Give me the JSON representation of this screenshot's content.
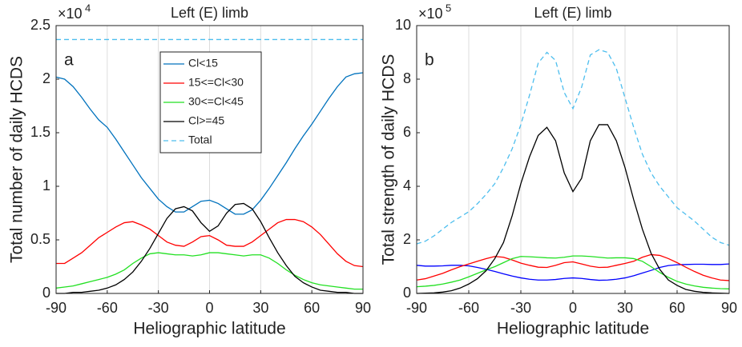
{
  "chart_data": [
    {
      "type": "line",
      "title": "Left (E) limb",
      "annotation": "a",
      "x_label": "Heliographic latitude",
      "y_label": "Total number of daily HCDS",
      "y_multiplier": "×10",
      "y_multiplier_exp": "4",
      "xlim": [
        -90,
        90
      ],
      "xticks": [
        -90,
        -60,
        -30,
        0,
        30,
        60,
        90
      ],
      "ylim": [
        0,
        2.5
      ],
      "yticks": [
        0,
        0.5,
        1,
        1.5,
        2,
        2.5
      ],
      "grid": true,
      "legend": "top-center",
      "x": [
        -90,
        -85,
        -80,
        -75,
        -70,
        -65,
        -60,
        -55,
        -50,
        -45,
        -40,
        -35,
        -30,
        -25,
        -20,
        -15,
        -10,
        -5,
        0,
        5,
        10,
        15,
        20,
        25,
        30,
        35,
        40,
        45,
        50,
        55,
        60,
        65,
        70,
        75,
        80,
        85,
        90
      ],
      "series": [
        {
          "name": "Cl<15",
          "color": "#0072bd",
          "linestyle": "solid",
          "values": [
            2.02,
            2.0,
            1.93,
            1.83,
            1.72,
            1.62,
            1.55,
            1.44,
            1.32,
            1.2,
            1.08,
            0.98,
            0.88,
            0.81,
            0.76,
            0.76,
            0.81,
            0.86,
            0.87,
            0.84,
            0.79,
            0.74,
            0.74,
            0.78,
            0.87,
            0.98,
            1.1,
            1.22,
            1.35,
            1.47,
            1.58,
            1.7,
            1.82,
            1.93,
            2.02,
            2.05,
            2.06
          ]
        },
        {
          "name": "15<=Cl<30",
          "color": "#ff0000",
          "linestyle": "solid",
          "values": [
            0.28,
            0.28,
            0.33,
            0.38,
            0.45,
            0.52,
            0.57,
            0.62,
            0.66,
            0.67,
            0.64,
            0.6,
            0.54,
            0.48,
            0.45,
            0.44,
            0.48,
            0.53,
            0.54,
            0.5,
            0.45,
            0.44,
            0.44,
            0.48,
            0.54,
            0.6,
            0.66,
            0.69,
            0.69,
            0.67,
            0.62,
            0.55,
            0.46,
            0.37,
            0.3,
            0.26,
            0.25
          ]
        },
        {
          "name": "30<=Cl<45",
          "color": "#22e022",
          "linestyle": "solid",
          "values": [
            0.05,
            0.06,
            0.07,
            0.09,
            0.11,
            0.13,
            0.15,
            0.18,
            0.22,
            0.28,
            0.33,
            0.37,
            0.38,
            0.37,
            0.36,
            0.36,
            0.35,
            0.36,
            0.38,
            0.38,
            0.37,
            0.36,
            0.35,
            0.36,
            0.36,
            0.33,
            0.28,
            0.22,
            0.17,
            0.13,
            0.1,
            0.08,
            0.07,
            0.06,
            0.05,
            0.04,
            0.04
          ]
        },
        {
          "name": "Cl>=45",
          "color": "#000000",
          "linestyle": "solid",
          "values": [
            0,
            0,
            0.01,
            0.01,
            0.02,
            0.03,
            0.05,
            0.08,
            0.13,
            0.2,
            0.3,
            0.42,
            0.56,
            0.7,
            0.79,
            0.81,
            0.77,
            0.66,
            0.58,
            0.63,
            0.75,
            0.83,
            0.84,
            0.79,
            0.67,
            0.52,
            0.38,
            0.26,
            0.16,
            0.1,
            0.06,
            0.03,
            0.02,
            0.01,
            0.01,
            0,
            0
          ]
        },
        {
          "name": "Total",
          "color": "#4dbeee",
          "linestyle": "dashed",
          "values": [
            2.37,
            2.37,
            2.37,
            2.37,
            2.37,
            2.37,
            2.37,
            2.37,
            2.37,
            2.37,
            2.37,
            2.37,
            2.37,
            2.37,
            2.37,
            2.37,
            2.37,
            2.37,
            2.37,
            2.37,
            2.37,
            2.37,
            2.37,
            2.37,
            2.37,
            2.37,
            2.37,
            2.37,
            2.37,
            2.37,
            2.37,
            2.37,
            2.37,
            2.37,
            2.37,
            2.37,
            2.37
          ]
        }
      ]
    },
    {
      "type": "line",
      "title": "Left (E) limb",
      "annotation": "b",
      "x_label": "Heliographic latitude",
      "y_label": "Total strength of daily HCDS",
      "y_multiplier": "×10",
      "y_multiplier_exp": "5",
      "xlim": [
        -90,
        90
      ],
      "xticks": [
        -90,
        -60,
        -30,
        0,
        30,
        60,
        90
      ],
      "ylim": [
        0,
        10
      ],
      "yticks": [
        0,
        2,
        4,
        6,
        8,
        10
      ],
      "grid": true,
      "x": [
        -90,
        -85,
        -80,
        -75,
        -70,
        -65,
        -60,
        -55,
        -50,
        -45,
        -40,
        -35,
        -30,
        -25,
        -20,
        -15,
        -10,
        -5,
        0,
        5,
        10,
        15,
        20,
        25,
        30,
        35,
        40,
        45,
        50,
        55,
        60,
        65,
        70,
        75,
        80,
        85,
        90
      ],
      "series": [
        {
          "color": "#0000ff",
          "linestyle": "solid",
          "values": [
            1.05,
            1.02,
            1.02,
            1.03,
            1.05,
            1.05,
            1.03,
            0.97,
            0.9,
            0.82,
            0.73,
            0.65,
            0.58,
            0.53,
            0.5,
            0.5,
            0.52,
            0.56,
            0.58,
            0.56,
            0.52,
            0.49,
            0.5,
            0.53,
            0.58,
            0.66,
            0.76,
            0.86,
            0.97,
            1.04,
            1.07,
            1.08,
            1.09,
            1.09,
            1.08,
            1.08,
            1.1
          ]
        },
        {
          "color": "#ff0000",
          "linestyle": "solid",
          "values": [
            0.5,
            0.55,
            0.65,
            0.75,
            0.88,
            1.0,
            1.1,
            1.2,
            1.3,
            1.38,
            1.35,
            1.25,
            1.13,
            1.05,
            0.98,
            0.97,
            1.05,
            1.15,
            1.18,
            1.1,
            1.02,
            0.97,
            0.98,
            1.05,
            1.12,
            1.2,
            1.35,
            1.45,
            1.42,
            1.3,
            1.15,
            0.98,
            0.82,
            0.68,
            0.58,
            0.5,
            0.48
          ]
        },
        {
          "color": "#22e022",
          "linestyle": "solid",
          "values": [
            0.25,
            0.27,
            0.3,
            0.35,
            0.42,
            0.5,
            0.62,
            0.75,
            0.88,
            1.0,
            1.15,
            1.3,
            1.38,
            1.37,
            1.35,
            1.33,
            1.32,
            1.35,
            1.4,
            1.4,
            1.38,
            1.35,
            1.32,
            1.33,
            1.33,
            1.3,
            1.2,
            1.0,
            0.78,
            0.6,
            0.45,
            0.35,
            0.28,
            0.23,
            0.2,
            0.18,
            0.17
          ]
        },
        {
          "color": "#000000",
          "linestyle": "solid",
          "values": [
            0,
            0.01,
            0.02,
            0.05,
            0.1,
            0.2,
            0.35,
            0.55,
            0.85,
            1.3,
            1.9,
            2.9,
            4.1,
            5.1,
            5.9,
            6.2,
            5.7,
            4.5,
            3.8,
            4.3,
            5.7,
            6.3,
            6.3,
            5.7,
            4.7,
            3.5,
            2.4,
            1.5,
            0.9,
            0.5,
            0.3,
            0.15,
            0.08,
            0.04,
            0.02,
            0.01,
            0
          ]
        },
        {
          "color": "#4dbeee",
          "linestyle": "dashed",
          "values": [
            1.85,
            1.95,
            2.15,
            2.4,
            2.65,
            2.85,
            3.05,
            3.35,
            3.7,
            4.1,
            4.7,
            5.4,
            6.3,
            7.4,
            8.6,
            9.0,
            8.7,
            7.5,
            6.9,
            7.7,
            8.9,
            9.1,
            9.0,
            8.4,
            7.3,
            6.2,
            5.2,
            4.5,
            4.0,
            3.6,
            3.2,
            2.95,
            2.7,
            2.4,
            2.1,
            1.9,
            1.8
          ]
        }
      ]
    }
  ]
}
